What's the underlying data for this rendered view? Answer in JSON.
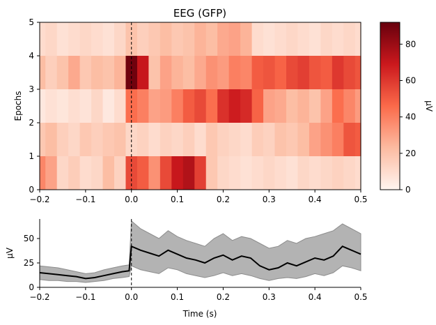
{
  "chart_data": [
    {
      "type": "heatmap",
      "title": "EEG (GFP)",
      "xlabel": "",
      "ylabel": "Epochs",
      "xlim": [
        -0.2,
        0.5
      ],
      "ylim": [
        0,
        5
      ],
      "x_ticks": [
        "−0.2",
        "−0.1",
        "0.0",
        "0.1",
        "0.2",
        "0.3",
        "0.4",
        "0.5"
      ],
      "x_tick_values": [
        -0.2,
        -0.1,
        0.0,
        0.1,
        0.2,
        0.3,
        0.4,
        0.5
      ],
      "y_ticks": [
        "0",
        "1",
        "2",
        "3",
        "4",
        "5"
      ],
      "y_tick_values": [
        0,
        1,
        2,
        3,
        4,
        5
      ],
      "event_line_x": 0.0,
      "time": [
        -0.2,
        -0.175,
        -0.15,
        -0.125,
        -0.1,
        -0.075,
        -0.05,
        -0.025,
        0.0,
        0.025,
        0.05,
        0.075,
        0.1,
        0.125,
        0.15,
        0.175,
        0.2,
        0.225,
        0.25,
        0.275,
        0.3,
        0.325,
        0.35,
        0.375,
        0.4,
        0.425,
        0.45,
        0.475,
        0.5
      ],
      "epochs": [
        {
          "epoch": 1,
          "values": [
            38,
            30,
            12,
            16,
            10,
            12,
            22,
            14,
            55,
            50,
            35,
            55,
            70,
            75,
            58,
            18,
            12,
            10,
            8,
            10,
            12,
            10,
            8,
            12,
            10,
            12,
            14,
            12,
            10
          ]
        },
        {
          "epoch": 2,
          "values": [
            18,
            22,
            15,
            12,
            18,
            15,
            18,
            20,
            12,
            14,
            10,
            14,
            12,
            15,
            10,
            18,
            14,
            12,
            10,
            16,
            14,
            20,
            18,
            22,
            30,
            35,
            40,
            52,
            50
          ]
        },
        {
          "epoch": 3,
          "values": [
            5,
            8,
            6,
            9,
            7,
            12,
            5,
            10,
            45,
            40,
            30,
            32,
            40,
            50,
            55,
            45,
            62,
            68,
            64,
            48,
            30,
            28,
            22,
            25,
            20,
            30,
            45,
            38,
            32
          ]
        },
        {
          "epoch": 4,
          "values": [
            22,
            15,
            20,
            28,
            18,
            22,
            20,
            25,
            90,
            70,
            20,
            30,
            25,
            22,
            28,
            35,
            32,
            40,
            38,
            50,
            52,
            48,
            55,
            58,
            52,
            50,
            60,
            55,
            52
          ]
        },
        {
          "epoch": 5,
          "values": [
            10,
            12,
            8,
            10,
            12,
            10,
            8,
            12,
            20,
            15,
            18,
            22,
            18,
            20,
            25,
            22,
            28,
            30,
            25,
            10,
            8,
            10,
            12,
            10,
            8,
            12,
            10,
            12,
            10
          ]
        }
      ],
      "colorbar": {
        "colormap": "Reds",
        "range": [
          0,
          92
        ],
        "ticks": [
          "0",
          "20",
          "40",
          "60",
          "80"
        ],
        "tick_values": [
          0,
          20,
          40,
          60,
          80
        ],
        "label": "µV"
      }
    },
    {
      "type": "area",
      "title": "",
      "xlabel": "Time (s)",
      "ylabel": "µV",
      "xlim": [
        -0.2,
        0.5
      ],
      "ylim": [
        0,
        70
      ],
      "x_ticks": [
        "−0.2",
        "−0.1",
        "0.0",
        "0.1",
        "0.2",
        "0.3",
        "0.4",
        "0.5"
      ],
      "x_tick_values": [
        -0.2,
        -0.1,
        0.0,
        0.1,
        0.2,
        0.3,
        0.4,
        0.5
      ],
      "y_ticks": [
        "0",
        "25",
        "50"
      ],
      "y_tick_values": [
        0,
        25,
        50
      ],
      "event_line_x": 0.0,
      "series": [
        {
          "x": [
            -0.2,
            -0.18,
            -0.16,
            -0.14,
            -0.12,
            -0.1,
            -0.08,
            -0.06,
            -0.04,
            -0.02,
            -0.005,
            0.0,
            0.02,
            0.04,
            0.06,
            0.08,
            0.1,
            0.12,
            0.14,
            0.16,
            0.18,
            0.2,
            0.22,
            0.24,
            0.26,
            0.28,
            0.3,
            0.32,
            0.34,
            0.36,
            0.38,
            0.4,
            0.42,
            0.44,
            0.46,
            0.48,
            0.5
          ],
          "mean": [
            15,
            14,
            13,
            12,
            11,
            9,
            10,
            12,
            14,
            16,
            17,
            42,
            38,
            35,
            32,
            38,
            34,
            30,
            28,
            25,
            30,
            33,
            28,
            32,
            30,
            22,
            18,
            20,
            25,
            22,
            26,
            30,
            28,
            32,
            42,
            38,
            34
          ],
          "upper": [
            22,
            21,
            20,
            18,
            16,
            14,
            15,
            18,
            20,
            22,
            23,
            68,
            60,
            55,
            50,
            58,
            52,
            48,
            45,
            42,
            50,
            55,
            48,
            52,
            50,
            45,
            40,
            42,
            48,
            45,
            50,
            52,
            55,
            58,
            65,
            60,
            55
          ],
          "lower": [
            8,
            7,
            7,
            6,
            6,
            5,
            6,
            7,
            9,
            10,
            11,
            22,
            18,
            16,
            14,
            20,
            18,
            14,
            12,
            10,
            12,
            15,
            12,
            14,
            12,
            9,
            7,
            9,
            10,
            9,
            11,
            14,
            12,
            15,
            22,
            20,
            17
          ]
        }
      ]
    }
  ]
}
